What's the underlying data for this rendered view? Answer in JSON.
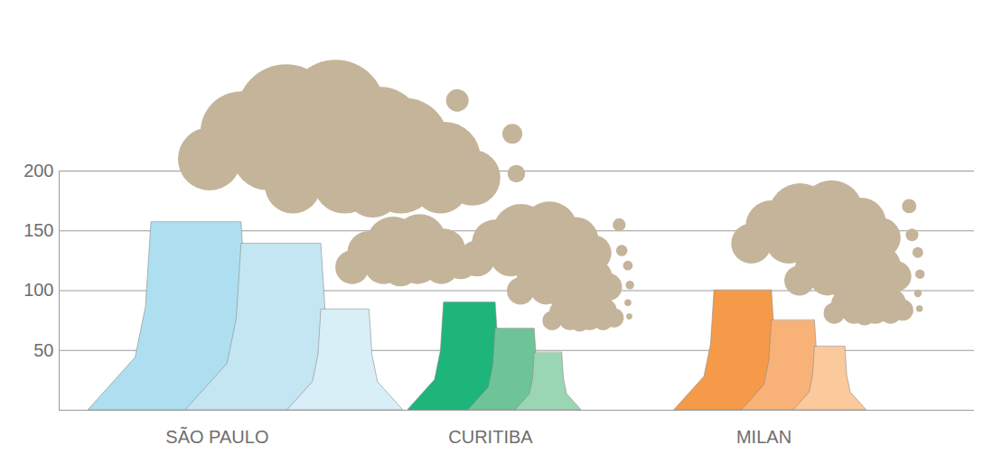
{
  "chart_data": {
    "type": "bar",
    "categories": [
      "SÃO PAULO",
      "CURITIBA",
      "MILAN"
    ],
    "series": [
      {
        "values": [
          157,
          90,
          100
        ],
        "colors": [
          "#addff0",
          "#1db57a",
          "#f59a48"
        ]
      },
      {
        "values": [
          139,
          68,
          75
        ],
        "colors": [
          "#c3e6f2",
          "#6ec497",
          "#f8b277"
        ]
      },
      {
        "values": [
          84,
          48,
          53
        ],
        "colors": [
          "#d8eff7",
          "#9ad5b4",
          "#fac99c"
        ]
      }
    ],
    "ylim": [
      0,
      200
    ],
    "yticks": [
      50,
      100,
      150,
      200
    ],
    "grid": true
  }
}
